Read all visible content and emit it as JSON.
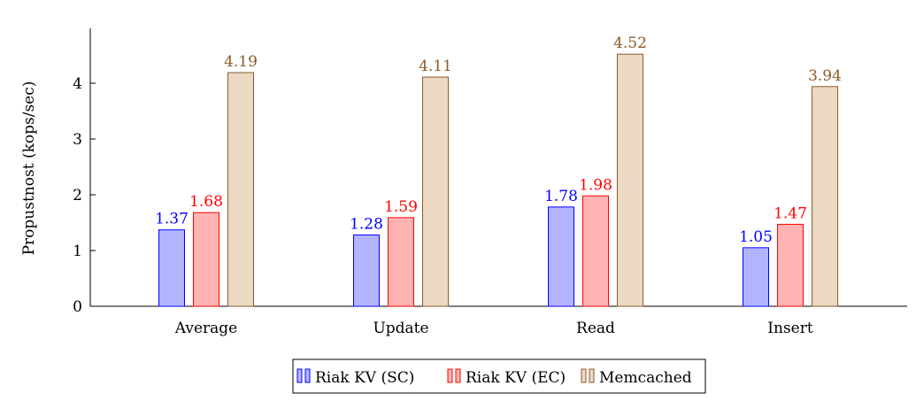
{
  "chart_data": {
    "type": "bar",
    "categories": [
      "Average",
      "Update",
      "Read",
      "Insert"
    ],
    "series": [
      {
        "name": "Riak KV (SC)",
        "values": [
          1.37,
          1.28,
          1.78,
          1.05
        ],
        "fill": "#b3b3ff",
        "stroke": "#0000ff",
        "label_color": "#0000ff"
      },
      {
        "name": "Riak KV (EC)",
        "values": [
          1.68,
          1.59,
          1.98,
          1.47
        ],
        "fill": "#ffb3b3",
        "stroke": "#ff0000",
        "label_color": "#ff0000"
      },
      {
        "name": "Memcached",
        "values": [
          4.19,
          4.11,
          4.52,
          3.94
        ],
        "fill": "#ebd9c4",
        "stroke": "#8b5a2b",
        "label_color": "#8b5a2b"
      }
    ],
    "title": "",
    "xlabel": "",
    "ylabel": "Propustnost (kops/sec)",
    "ylim": [
      0,
      5
    ],
    "yticks": [
      0,
      1,
      2,
      3,
      4
    ],
    "grid": false,
    "legend_position": "bottom-center"
  }
}
